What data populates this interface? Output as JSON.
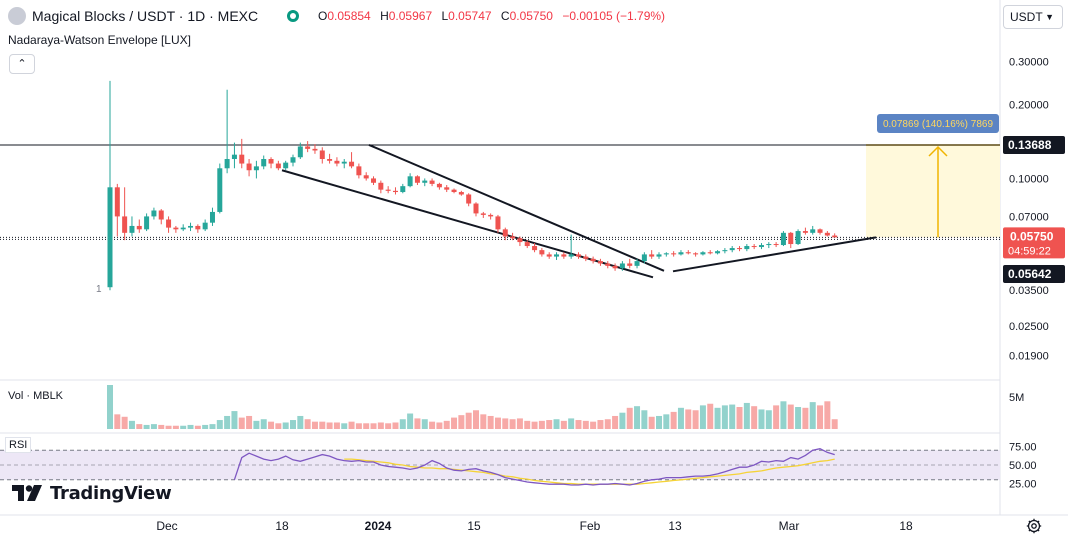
{
  "header": {
    "symbol": "Magical Blocks / USDT · 1D · MEXC",
    "ohlc": [
      {
        "k": "O",
        "v": "0.05854"
      },
      {
        "k": "H",
        "v": "0.05967"
      },
      {
        "k": "L",
        "v": "0.05747"
      },
      {
        "k": "C",
        "v": "0.05750"
      },
      {
        "k": "",
        "v": "−0.00105 (−1.79%)"
      }
    ],
    "indicator": "Nadaraya-Watson Envelope [LUX]",
    "collapse_icon": "chevron-up-icon",
    "currency": "USDT",
    "currency_icon": "chevron-down-icon"
  },
  "panes": {
    "volume_label": "Vol · MBLK",
    "rsi_label": "RSI"
  },
  "brand": {
    "name": "TradingView",
    "logo_icon": "tradingview-logo-icon"
  },
  "colors": {
    "up": "#26a69a",
    "down": "#ef5350",
    "up_vol": "#92d2cc",
    "down_vol": "#f7a9a7",
    "rsi_line": "#7e57c2",
    "rsi_ma": "#f5d337",
    "rsi_band": "#ede7f6",
    "projection_fill": "#fff9db",
    "projection_line": "#f0b400",
    "projection_label_bg": "#5b84c4",
    "last_price_bg": "#ef5350",
    "marker_bg": "#131722"
  },
  "chart_data": {
    "type": "candlestick",
    "price_axis_ticks": [
      "0.30000",
      "0.20000",
      "0.13688",
      "0.10000",
      "0.07000",
      "0.05750",
      "0.05642",
      "0.03500",
      "0.02500",
      "0.01900"
    ],
    "last_price": {
      "value": "0.05750",
      "countdown": "04:59:22"
    },
    "marker_price": "0.05642",
    "horizontal_line": "0.13688",
    "volume_axis_label": "5M",
    "rsi_axis_ticks": [
      "75.00",
      "50.00",
      "25.00"
    ],
    "x_ticks": [
      "Dec",
      "18",
      "2024",
      "15",
      "Feb",
      "13",
      "Mar",
      "18"
    ],
    "projection_label": "0.07869 (140.16%) 7869",
    "low_marker_label": "1",
    "candles": [
      {
        "o": 0.036,
        "h": 0.25,
        "l": 0.035,
        "c": 0.092
      },
      {
        "o": 0.092,
        "h": 0.095,
        "l": 0.058,
        "c": 0.07
      },
      {
        "o": 0.07,
        "h": 0.092,
        "l": 0.056,
        "c": 0.06
      },
      {
        "o": 0.06,
        "h": 0.07,
        "l": 0.058,
        "c": 0.064
      },
      {
        "o": 0.064,
        "h": 0.068,
        "l": 0.06,
        "c": 0.062
      },
      {
        "o": 0.062,
        "h": 0.072,
        "l": 0.061,
        "c": 0.07
      },
      {
        "o": 0.07,
        "h": 0.076,
        "l": 0.068,
        "c": 0.074
      },
      {
        "o": 0.074,
        "h": 0.075,
        "l": 0.065,
        "c": 0.068
      },
      {
        "o": 0.068,
        "h": 0.07,
        "l": 0.06,
        "c": 0.063
      },
      {
        "o": 0.063,
        "h": 0.064,
        "l": 0.06,
        "c": 0.062
      },
      {
        "o": 0.062,
        "h": 0.065,
        "l": 0.061,
        "c": 0.063
      },
      {
        "o": 0.063,
        "h": 0.066,
        "l": 0.061,
        "c": 0.064
      },
      {
        "o": 0.064,
        "h": 0.065,
        "l": 0.06,
        "c": 0.062
      },
      {
        "o": 0.062,
        "h": 0.068,
        "l": 0.061,
        "c": 0.066
      },
      {
        "o": 0.066,
        "h": 0.076,
        "l": 0.064,
        "c": 0.073
      },
      {
        "o": 0.073,
        "h": 0.115,
        "l": 0.072,
        "c": 0.11
      },
      {
        "o": 0.11,
        "h": 0.23,
        "l": 0.105,
        "c": 0.12
      },
      {
        "o": 0.12,
        "h": 0.14,
        "l": 0.11,
        "c": 0.125
      },
      {
        "o": 0.125,
        "h": 0.145,
        "l": 0.11,
        "c": 0.115
      },
      {
        "o": 0.115,
        "h": 0.12,
        "l": 0.102,
        "c": 0.108
      },
      {
        "o": 0.108,
        "h": 0.118,
        "l": 0.1,
        "c": 0.112
      },
      {
        "o": 0.112,
        "h": 0.124,
        "l": 0.109,
        "c": 0.12
      },
      {
        "o": 0.12,
        "h": 0.122,
        "l": 0.11,
        "c": 0.115
      },
      {
        "o": 0.115,
        "h": 0.118,
        "l": 0.108,
        "c": 0.11
      },
      {
        "o": 0.11,
        "h": 0.118,
        "l": 0.108,
        "c": 0.116
      },
      {
        "o": 0.116,
        "h": 0.125,
        "l": 0.112,
        "c": 0.122
      },
      {
        "o": 0.122,
        "h": 0.14,
        "l": 0.12,
        "c": 0.135
      },
      {
        "o": 0.135,
        "h": 0.142,
        "l": 0.128,
        "c": 0.132
      },
      {
        "o": 0.132,
        "h": 0.138,
        "l": 0.126,
        "c": 0.13
      },
      {
        "o": 0.13,
        "h": 0.134,
        "l": 0.115,
        "c": 0.12
      },
      {
        "o": 0.12,
        "h": 0.126,
        "l": 0.115,
        "c": 0.118
      },
      {
        "o": 0.118,
        "h": 0.122,
        "l": 0.112,
        "c": 0.115
      },
      {
        "o": 0.115,
        "h": 0.12,
        "l": 0.11,
        "c": 0.117
      },
      {
        "o": 0.117,
        "h": 0.128,
        "l": 0.11,
        "c": 0.112
      },
      {
        "o": 0.112,
        "h": 0.115,
        "l": 0.1,
        "c": 0.103
      },
      {
        "o": 0.103,
        "h": 0.106,
        "l": 0.098,
        "c": 0.1
      },
      {
        "o": 0.1,
        "h": 0.102,
        "l": 0.094,
        "c": 0.096
      },
      {
        "o": 0.096,
        "h": 0.098,
        "l": 0.087,
        "c": 0.09
      },
      {
        "o": 0.09,
        "h": 0.093,
        "l": 0.087,
        "c": 0.089
      },
      {
        "o": 0.089,
        "h": 0.092,
        "l": 0.086,
        "c": 0.088
      },
      {
        "o": 0.088,
        "h": 0.095,
        "l": 0.087,
        "c": 0.093
      },
      {
        "o": 0.093,
        "h": 0.105,
        "l": 0.092,
        "c": 0.102
      },
      {
        "o": 0.102,
        "h": 0.103,
        "l": 0.094,
        "c": 0.096
      },
      {
        "o": 0.096,
        "h": 0.1,
        "l": 0.093,
        "c": 0.098
      },
      {
        "o": 0.098,
        "h": 0.1,
        "l": 0.093,
        "c": 0.095
      },
      {
        "o": 0.095,
        "h": 0.096,
        "l": 0.09,
        "c": 0.092
      },
      {
        "o": 0.092,
        "h": 0.094,
        "l": 0.088,
        "c": 0.09
      },
      {
        "o": 0.09,
        "h": 0.091,
        "l": 0.087,
        "c": 0.088
      },
      {
        "o": 0.088,
        "h": 0.089,
        "l": 0.085,
        "c": 0.086
      },
      {
        "o": 0.086,
        "h": 0.087,
        "l": 0.077,
        "c": 0.079
      },
      {
        "o": 0.079,
        "h": 0.08,
        "l": 0.07,
        "c": 0.072
      },
      {
        "o": 0.072,
        "h": 0.073,
        "l": 0.069,
        "c": 0.071
      },
      {
        "o": 0.071,
        "h": 0.072,
        "l": 0.068,
        "c": 0.07
      },
      {
        "o": 0.07,
        "h": 0.071,
        "l": 0.06,
        "c": 0.062
      },
      {
        "o": 0.062,
        "h": 0.063,
        "l": 0.056,
        "c": 0.058
      },
      {
        "o": 0.058,
        "h": 0.06,
        "l": 0.056,
        "c": 0.057
      },
      {
        "o": 0.057,
        "h": 0.058,
        "l": 0.053,
        "c": 0.055
      },
      {
        "o": 0.055,
        "h": 0.056,
        "l": 0.052,
        "c": 0.053
      },
      {
        "o": 0.053,
        "h": 0.0545,
        "l": 0.05,
        "c": 0.051
      },
      {
        "o": 0.051,
        "h": 0.052,
        "l": 0.048,
        "c": 0.049
      },
      {
        "o": 0.049,
        "h": 0.05,
        "l": 0.047,
        "c": 0.048
      },
      {
        "o": 0.048,
        "h": 0.05,
        "l": 0.0465,
        "c": 0.049
      },
      {
        "o": 0.049,
        "h": 0.05,
        "l": 0.047,
        "c": 0.048
      },
      {
        "o": 0.048,
        "h": 0.059,
        "l": 0.047,
        "c": 0.049
      },
      {
        "o": 0.049,
        "h": 0.05,
        "l": 0.047,
        "c": 0.048
      },
      {
        "o": 0.048,
        "h": 0.049,
        "l": 0.046,
        "c": 0.047
      },
      {
        "o": 0.047,
        "h": 0.048,
        "l": 0.045,
        "c": 0.046
      },
      {
        "o": 0.046,
        "h": 0.047,
        "l": 0.044,
        "c": 0.045
      },
      {
        "o": 0.045,
        "h": 0.046,
        "l": 0.043,
        "c": 0.044
      },
      {
        "o": 0.044,
        "h": 0.045,
        "l": 0.042,
        "c": 0.043
      },
      {
        "o": 0.043,
        "h": 0.046,
        "l": 0.042,
        "c": 0.045
      },
      {
        "o": 0.045,
        "h": 0.047,
        "l": 0.043,
        "c": 0.044
      },
      {
        "o": 0.044,
        "h": 0.047,
        "l": 0.043,
        "c": 0.046
      },
      {
        "o": 0.046,
        "h": 0.05,
        "l": 0.045,
        "c": 0.049
      },
      {
        "o": 0.049,
        "h": 0.051,
        "l": 0.047,
        "c": 0.048
      },
      {
        "o": 0.048,
        "h": 0.05,
        "l": 0.047,
        "c": 0.049
      },
      {
        "o": 0.049,
        "h": 0.05,
        "l": 0.048,
        "c": 0.0495
      },
      {
        "o": 0.0495,
        "h": 0.0505,
        "l": 0.048,
        "c": 0.049
      },
      {
        "o": 0.049,
        "h": 0.051,
        "l": 0.0485,
        "c": 0.05
      },
      {
        "o": 0.05,
        "h": 0.051,
        "l": 0.049,
        "c": 0.0495
      },
      {
        "o": 0.0495,
        "h": 0.05,
        "l": 0.048,
        "c": 0.049
      },
      {
        "o": 0.049,
        "h": 0.0505,
        "l": 0.0485,
        "c": 0.05
      },
      {
        "o": 0.05,
        "h": 0.051,
        "l": 0.049,
        "c": 0.0495
      },
      {
        "o": 0.0495,
        "h": 0.051,
        "l": 0.049,
        "c": 0.0505
      },
      {
        "o": 0.0505,
        "h": 0.052,
        "l": 0.0495,
        "c": 0.051
      },
      {
        "o": 0.051,
        "h": 0.053,
        "l": 0.05,
        "c": 0.052
      },
      {
        "o": 0.052,
        "h": 0.053,
        "l": 0.0505,
        "c": 0.0515
      },
      {
        "o": 0.0515,
        "h": 0.054,
        "l": 0.0505,
        "c": 0.053
      },
      {
        "o": 0.053,
        "h": 0.054,
        "l": 0.0515,
        "c": 0.0525
      },
      {
        "o": 0.0525,
        "h": 0.0545,
        "l": 0.0515,
        "c": 0.0535
      },
      {
        "o": 0.0535,
        "h": 0.055,
        "l": 0.052,
        "c": 0.054
      },
      {
        "o": 0.054,
        "h": 0.055,
        "l": 0.0525,
        "c": 0.0535
      },
      {
        "o": 0.0535,
        "h": 0.061,
        "l": 0.053,
        "c": 0.06
      },
      {
        "o": 0.06,
        "h": 0.0605,
        "l": 0.052,
        "c": 0.054
      },
      {
        "o": 0.054,
        "h": 0.062,
        "l": 0.0535,
        "c": 0.061
      },
      {
        "o": 0.061,
        "h": 0.063,
        "l": 0.059,
        "c": 0.06
      },
      {
        "o": 0.06,
        "h": 0.064,
        "l": 0.059,
        "c": 0.062
      },
      {
        "o": 0.062,
        "h": 0.0625,
        "l": 0.059,
        "c": 0.06
      },
      {
        "o": 0.06,
        "h": 0.061,
        "l": 0.058,
        "c": 0.0585
      },
      {
        "o": 0.0585,
        "h": 0.0597,
        "l": 0.0575,
        "c": 0.0575
      }
    ],
    "volume": [
      5.4,
      1.8,
      1.5,
      1.0,
      0.6,
      0.5,
      0.6,
      0.5,
      0.4,
      0.4,
      0.4,
      0.5,
      0.4,
      0.5,
      0.6,
      1.1,
      1.6,
      2.2,
      1.4,
      1.6,
      1.0,
      1.2,
      0.9,
      0.7,
      0.8,
      1.1,
      1.6,
      1.2,
      0.9,
      0.9,
      0.8,
      0.8,
      0.7,
      0.9,
      0.7,
      0.7,
      0.7,
      0.8,
      0.7,
      0.8,
      1.2,
      1.9,
      1.3,
      1.2,
      0.9,
      0.8,
      1.0,
      1.4,
      1.7,
      2.0,
      2.3,
      1.8,
      1.6,
      1.4,
      1.3,
      1.2,
      1.3,
      1.0,
      0.9,
      1.0,
      1.1,
      1.2,
      1.0,
      1.3,
      1.1,
      1.0,
      0.9,
      1.1,
      1.2,
      1.6,
      2.0,
      2.6,
      2.8,
      2.3,
      1.5,
      1.6,
      1.8,
      2.1,
      2.6,
      2.4,
      2.3,
      2.9,
      3.1,
      2.6,
      2.9,
      3.0,
      2.7,
      3.2,
      2.8,
      2.4,
      2.3,
      2.9,
      3.4,
      3.0,
      2.7,
      2.6,
      3.3,
      2.9,
      3.4,
      1.2
    ],
    "rsi": [
      null,
      null,
      null,
      null,
      null,
      null,
      null,
      null,
      null,
      null,
      null,
      null,
      null,
      null,
      null,
      null,
      null,
      30,
      60,
      66,
      62,
      58,
      56,
      58,
      62,
      57,
      55,
      58,
      61,
      64,
      62,
      58,
      56,
      55,
      56,
      54,
      54,
      50,
      48,
      47,
      46,
      44,
      46,
      50,
      56,
      52,
      46,
      43,
      42,
      44,
      45,
      42,
      40,
      37,
      33,
      31,
      29,
      27,
      26,
      25,
      24,
      24,
      24,
      23,
      23,
      24,
      23,
      24,
      24,
      25,
      24,
      23,
      25,
      28,
      30,
      31,
      33,
      33,
      33,
      34,
      35,
      35,
      36,
      38,
      41,
      44,
      47,
      47,
      50,
      55,
      54,
      56,
      55,
      60,
      58,
      63,
      70,
      72,
      67,
      64
    ],
    "rsi_ma": [
      null,
      null,
      null,
      null,
      null,
      null,
      null,
      null,
      null,
      null,
      null,
      null,
      null,
      null,
      null,
      null,
      null,
      null,
      null,
      null,
      null,
      null,
      null,
      null,
      null,
      null,
      null,
      null,
      null,
      null,
      null,
      null,
      58,
      58,
      57,
      56,
      55,
      54,
      53,
      51,
      50,
      48,
      47,
      46,
      46,
      45,
      45,
      44,
      43,
      42,
      41,
      40,
      38,
      37,
      35,
      34,
      32,
      31,
      29,
      28,
      27,
      26,
      25,
      25,
      24,
      24,
      24,
      24,
      24,
      24,
      24,
      24,
      24,
      25,
      26,
      27,
      28,
      29,
      30,
      31,
      32,
      33,
      34,
      35,
      36,
      37,
      38,
      40,
      41,
      42,
      44,
      46,
      47,
      48,
      49,
      51,
      53,
      55,
      56,
      58
    ]
  }
}
